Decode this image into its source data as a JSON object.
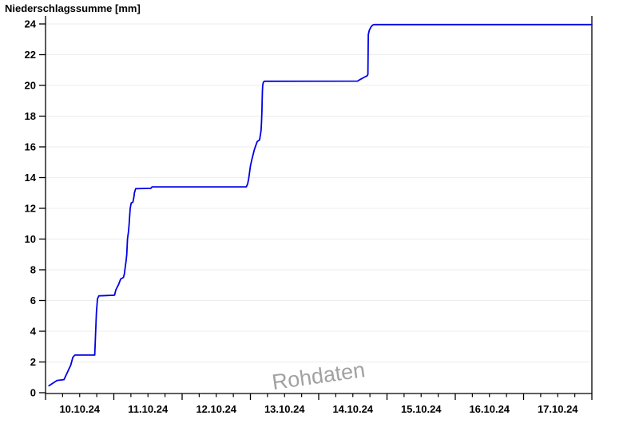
{
  "chart_data": {
    "type": "line",
    "title": "Niederschlagssumme [mm]",
    "watermark": "Rohdaten",
    "line_color": "#0000e6",
    "grid_color": "#ededed",
    "axis_color": "#000000",
    "watermark_color": "#979797",
    "xlabel": "",
    "ylabel": "Niederschlagssumme [mm]",
    "x_unit": "days (0 = 10.10.24 00:00)",
    "xlim": [
      0,
      8
    ],
    "ylim": [
      0,
      24
    ],
    "y_ticks": [
      0,
      2,
      4,
      6,
      8,
      10,
      12,
      14,
      16,
      18,
      20,
      22,
      24
    ],
    "x_day_labels": [
      "10.10.24",
      "11.10.24",
      "12.10.24",
      "13.10.24",
      "14.10.24",
      "15.10.24",
      "16.10.24",
      "17.10.24"
    ],
    "minor_ticks_per_day": 4,
    "grid": "horizontal-only",
    "legend": "none",
    "series": [
      {
        "name": "Niederschlagssumme",
        "points": [
          [
            0.05,
            0.45
          ],
          [
            0.17,
            0.8
          ],
          [
            0.27,
            0.85
          ],
          [
            0.37,
            1.8
          ],
          [
            0.4,
            2.3
          ],
          [
            0.43,
            2.45
          ],
          [
            0.72,
            2.45
          ],
          [
            0.73,
            3.5
          ],
          [
            0.745,
            5.2
          ],
          [
            0.76,
            6.1
          ],
          [
            0.78,
            6.3
          ],
          [
            1.01,
            6.35
          ],
          [
            1.03,
            6.7
          ],
          [
            1.07,
            7.05
          ],
          [
            1.1,
            7.4
          ],
          [
            1.14,
            7.5
          ],
          [
            1.155,
            7.75
          ],
          [
            1.165,
            8.1
          ],
          [
            1.18,
            8.6
          ],
          [
            1.19,
            9.0
          ],
          [
            1.2,
            10.0
          ],
          [
            1.215,
            10.5
          ],
          [
            1.225,
            11.0
          ],
          [
            1.24,
            12.0
          ],
          [
            1.255,
            12.35
          ],
          [
            1.28,
            12.4
          ],
          [
            1.295,
            12.75
          ],
          [
            1.3,
            13.0
          ],
          [
            1.315,
            13.2
          ],
          [
            1.32,
            13.28
          ],
          [
            1.54,
            13.3
          ],
          [
            1.56,
            13.4
          ],
          [
            2.94,
            13.4
          ],
          [
            2.96,
            13.6
          ],
          [
            2.975,
            13.95
          ],
          [
            2.99,
            14.4
          ],
          [
            3.0,
            14.75
          ],
          [
            3.02,
            15.15
          ],
          [
            3.04,
            15.5
          ],
          [
            3.06,
            15.85
          ],
          [
            3.08,
            16.1
          ],
          [
            3.1,
            16.35
          ],
          [
            3.135,
            16.45
          ],
          [
            3.145,
            16.75
          ],
          [
            3.155,
            17.05
          ],
          [
            3.163,
            17.6
          ],
          [
            3.168,
            18.3
          ],
          [
            3.172,
            19.0
          ],
          [
            3.176,
            19.6
          ],
          [
            3.18,
            20.0
          ],
          [
            3.19,
            20.2
          ],
          [
            3.205,
            20.27
          ],
          [
            4.57,
            20.28
          ],
          [
            4.6,
            20.37
          ],
          [
            4.64,
            20.46
          ],
          [
            4.675,
            20.55
          ],
          [
            4.71,
            20.63
          ],
          [
            4.72,
            20.72
          ],
          [
            4.726,
            23.3
          ],
          [
            4.74,
            23.58
          ],
          [
            4.765,
            23.8
          ],
          [
            4.79,
            23.92
          ],
          [
            4.81,
            23.96
          ],
          [
            8.0,
            23.96
          ]
        ]
      }
    ]
  }
}
